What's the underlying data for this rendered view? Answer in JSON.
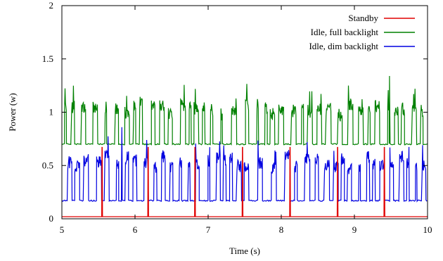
{
  "chart_data": {
    "type": "line",
    "xlabel": "Time (s)",
    "ylabel": "Power (w)",
    "xlim": [
      5,
      10
    ],
    "ylim": [
      0,
      2
    ],
    "xticks": [
      "5",
      "6",
      "7",
      "8",
      "9",
      "10"
    ],
    "yticks": [
      "0",
      "0.5",
      "1",
      "1.5",
      "2"
    ],
    "grid": false,
    "legend_position": "top-right",
    "series": [
      {
        "name": "Standby",
        "color": "#e00000",
        "baseline": 0.02,
        "spike_times": [
          5.55,
          6.18,
          6.82,
          7.47,
          8.12,
          8.77,
          9.41
        ],
        "spike_height": 0.67
      },
      {
        "name": "Idle, full backlight",
        "color": "#008000",
        "baseline": 0.7,
        "typical_peak": 1.05,
        "max_peak": 1.34,
        "max_peak_time": 9.48
      },
      {
        "name": "Idle, dim backlight",
        "color": "#0000e0",
        "baseline": 0.17,
        "typical_peak": 0.55,
        "max_peak": 0.86,
        "max_peak_time": 5.82
      }
    ]
  }
}
